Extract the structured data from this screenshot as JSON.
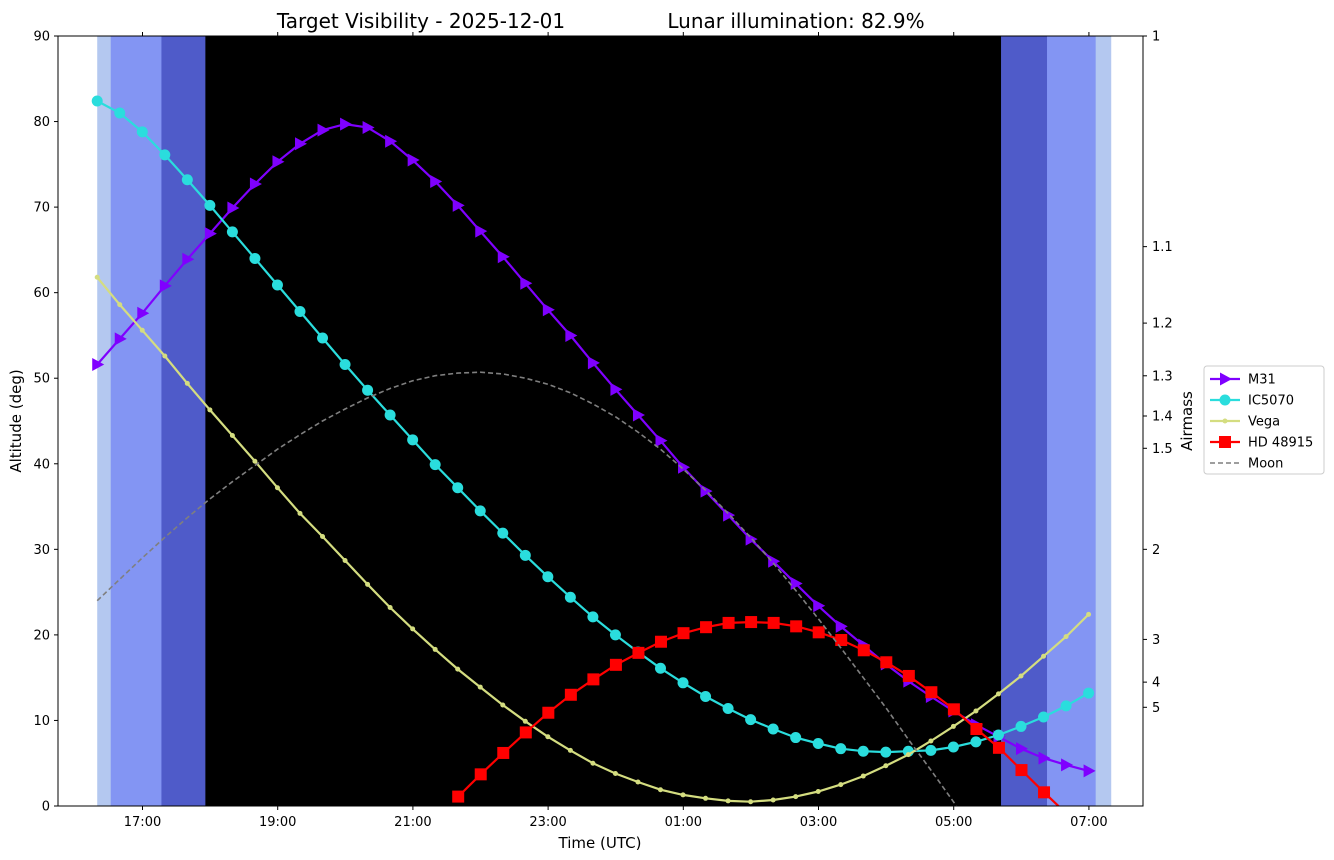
{
  "chart_data": {
    "type": "line",
    "title": "Target Visibility - 2025-12-01",
    "subtitle": "Lunar illumination: 82.9%",
    "xlabel": "Time (UTC)",
    "ylabel": "Altitude (deg)",
    "y2label": "Airmass",
    "ylim": [
      0,
      90
    ],
    "xlim_hours": [
      15.75,
      31.8
    ],
    "yticks": [
      0,
      10,
      20,
      30,
      40,
      50,
      60,
      70,
      80,
      90
    ],
    "xticks": [
      {
        "h": 17,
        "label": "17:00"
      },
      {
        "h": 19,
        "label": "19:00"
      },
      {
        "h": 21,
        "label": "21:00"
      },
      {
        "h": 23,
        "label": "23:00"
      },
      {
        "h": 25,
        "label": "01:00"
      },
      {
        "h": 27,
        "label": "03:00"
      },
      {
        "h": 29,
        "label": "05:00"
      },
      {
        "h": 31,
        "label": "07:00"
      }
    ],
    "airmass_ticks": [
      "1",
      "1.1",
      "1.2",
      "1.3",
      "1.4",
      "1.5",
      "2",
      "3",
      "4",
      "5"
    ],
    "twilight_bands": [
      {
        "name": "civil",
        "from": 16.33,
        "to": 31.33,
        "color": "#b4c8f0"
      },
      {
        "name": "nautical",
        "from": 16.53,
        "to": 31.1,
        "color": "#8395f3"
      },
      {
        "name": "astronomical",
        "from": 17.28,
        "to": 30.38,
        "color": "#4f5bc9"
      },
      {
        "name": "night",
        "from": 17.93,
        "to": 29.7,
        "color": "#000000"
      }
    ],
    "series": [
      {
        "name": "M31",
        "color": "#7f00ff",
        "marker": "triangle-right",
        "start": 16.33,
        "step": 0.3333,
        "values": [
          51.6,
          54.6,
          57.6,
          60.8,
          63.9,
          66.9,
          69.9,
          72.7,
          75.3,
          77.4,
          79.0,
          79.7,
          79.3,
          77.7,
          75.5,
          73.0,
          70.2,
          67.2,
          64.2,
          61.1,
          58.0,
          55.0,
          51.8,
          48.7,
          45.7,
          42.7,
          39.6,
          36.8,
          34.0,
          31.2,
          28.6,
          26.0,
          23.4,
          21.0,
          18.8,
          16.6,
          14.6,
          12.8,
          11.1,
          9.5,
          8.1,
          6.7,
          5.6,
          4.8,
          4.1
        ]
      },
      {
        "name": "IC5070",
        "color": "#2adddd",
        "marker": "circle",
        "start": 16.33,
        "step": 0.3333,
        "values": [
          82.4,
          81.0,
          78.8,
          76.1,
          73.2,
          70.2,
          67.1,
          64.0,
          60.9,
          57.8,
          54.7,
          51.6,
          48.6,
          45.7,
          42.8,
          39.9,
          37.2,
          34.5,
          31.9,
          29.3,
          26.8,
          24.4,
          22.1,
          20.0,
          18.0,
          16.1,
          14.4,
          12.8,
          11.4,
          10.1,
          9.0,
          8.0,
          7.3,
          6.7,
          6.4,
          6.3,
          6.4,
          6.5,
          6.9,
          7.5,
          8.3,
          9.3,
          10.4,
          11.7,
          13.2
        ]
      },
      {
        "name": "Vega",
        "color": "#d4dd80",
        "marker": "dot",
        "start": 16.33,
        "step": 0.3333,
        "values": [
          61.8,
          58.6,
          55.6,
          52.6,
          49.4,
          46.3,
          43.3,
          40.3,
          37.2,
          34.2,
          31.5,
          28.7,
          25.9,
          23.2,
          20.7,
          18.3,
          16.0,
          13.9,
          11.8,
          9.9,
          8.1,
          6.5,
          5.0,
          3.8,
          2.8,
          1.9,
          1.3,
          0.9,
          0.6,
          0.5,
          0.7,
          1.1,
          1.7,
          2.5,
          3.5,
          4.7,
          6.0,
          7.6,
          9.3,
          11.1,
          13.1,
          15.2,
          17.5,
          19.8,
          22.4
        ]
      },
      {
        "name": "HD 48915",
        "color": "#ff0000",
        "marker": "square",
        "start": 21.67,
        "step": 0.3333,
        "values": [
          1.1,
          3.7,
          6.2,
          8.6,
          10.9,
          13.0,
          14.8,
          16.5,
          17.9,
          19.2,
          20.2,
          20.9,
          21.4,
          21.5,
          21.4,
          21.0,
          20.3,
          19.4,
          18.2,
          16.8,
          15.2,
          13.3,
          11.3,
          9.0,
          6.8,
          4.2,
          1.6,
          -0.9
        ]
      },
      {
        "name": "Moon",
        "color": "#7f7f7f",
        "marker": "none",
        "dashed": true,
        "start": 16.33,
        "step": 0.3333,
        "values": [
          24.0,
          26.5,
          29.0,
          31.4,
          33.7,
          35.9,
          37.9,
          39.8,
          41.7,
          43.4,
          45.0,
          46.4,
          47.7,
          48.8,
          49.7,
          50.3,
          50.6,
          50.7,
          50.5,
          50.0,
          49.3,
          48.3,
          47.0,
          45.5,
          43.7,
          41.7,
          39.4,
          36.9,
          34.2,
          31.4,
          28.4,
          25.2,
          21.9,
          18.5,
          15.0,
          11.5,
          7.8,
          4.2,
          0.5,
          -3.1
        ]
      }
    ],
    "legend_position": "right",
    "grid": false
  }
}
